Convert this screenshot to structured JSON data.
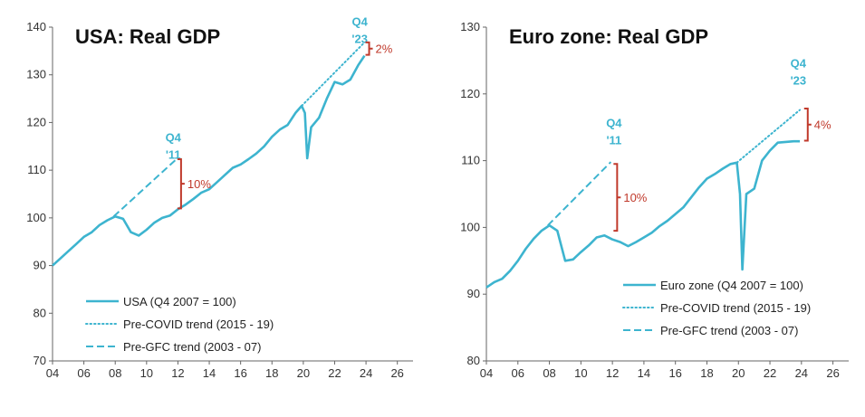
{
  "chart_data": [
    {
      "type": "line",
      "title": "USA: Real GDP",
      "xlabel": "",
      "ylabel": "",
      "xlim": [
        2004,
        2027
      ],
      "ylim": [
        70,
        140
      ],
      "x_ticks": [
        4,
        6,
        8,
        10,
        12,
        14,
        16,
        18,
        20,
        22,
        24,
        26
      ],
      "x_tick_labels": [
        "04",
        "06",
        "08",
        "10",
        "12",
        "14",
        "16",
        "18",
        "20",
        "22",
        "24",
        "26"
      ],
      "y_ticks": [
        70,
        80,
        90,
        100,
        110,
        120,
        130,
        140
      ],
      "y_tick_labels": [
        "70",
        "80",
        "90",
        "100",
        "110",
        "120",
        "130",
        "140"
      ],
      "legend_position": "bottom-left",
      "series": [
        {
          "name": "USA (Q4 2007 = 100)",
          "style": "solid",
          "color": "#3db4cf",
          "points": [
            [
              2004.0,
              90.0
            ],
            [
              2004.5,
              91.5
            ],
            [
              2005.0,
              93.0
            ],
            [
              2005.5,
              94.5
            ],
            [
              2006.0,
              96.0
            ],
            [
              2006.5,
              97.0
            ],
            [
              2007.0,
              98.5
            ],
            [
              2007.5,
              99.5
            ],
            [
              2008.0,
              100.3
            ],
            [
              2008.5,
              99.8
            ],
            [
              2009.0,
              97.0
            ],
            [
              2009.5,
              96.3
            ],
            [
              2010.0,
              97.5
            ],
            [
              2010.5,
              99.0
            ],
            [
              2011.0,
              100.0
            ],
            [
              2011.5,
              100.5
            ],
            [
              2012.0,
              101.8
            ],
            [
              2012.5,
              102.8
            ],
            [
              2013.0,
              104.0
            ],
            [
              2013.5,
              105.3
            ],
            [
              2014.0,
              106.0
            ],
            [
              2014.5,
              107.5
            ],
            [
              2015.0,
              109.0
            ],
            [
              2015.5,
              110.5
            ],
            [
              2016.0,
              111.2
            ],
            [
              2016.5,
              112.3
            ],
            [
              2017.0,
              113.5
            ],
            [
              2017.5,
              115.0
            ],
            [
              2018.0,
              117.0
            ],
            [
              2018.5,
              118.5
            ],
            [
              2019.0,
              119.5
            ],
            [
              2019.5,
              122.0
            ],
            [
              2019.9,
              123.5
            ],
            [
              2020.1,
              122.0
            ],
            [
              2020.25,
              112.5
            ],
            [
              2020.5,
              119.0
            ],
            [
              2021.0,
              121.0
            ],
            [
              2021.5,
              125.0
            ],
            [
              2022.0,
              128.5
            ],
            [
              2022.5,
              128.0
            ],
            [
              2023.0,
              129.0
            ],
            [
              2023.5,
              132.0
            ],
            [
              2023.9,
              134.0
            ]
          ]
        },
        {
          "name": "Pre-COVID trend (2015 - 19)",
          "style": "dotted",
          "color": "#3db4cf",
          "points": [
            [
              2019.9,
              123.5
            ],
            [
              2023.9,
              136.8
            ]
          ]
        },
        {
          "name": "Pre-GFC trend (2003 - 07)",
          "style": "dashed",
          "color": "#3db4cf",
          "points": [
            [
              2007.9,
              100.3
            ],
            [
              2011.9,
              112.3
            ]
          ]
        }
      ],
      "annotations": [
        {
          "kind": "label",
          "lines": [
            "Q4",
            "'11"
          ],
          "x": 2011.7,
          "y": 116.0
        },
        {
          "kind": "bracket",
          "text": "10%",
          "x": 2012.2,
          "y_low": 102.0,
          "y_high": 112.3
        },
        {
          "kind": "label",
          "lines": [
            "Q4",
            "'23"
          ],
          "x": 2023.6,
          "y": 140.3
        },
        {
          "kind": "bracket",
          "text": "2%",
          "x": 2024.2,
          "y_low": 134.2,
          "y_high": 136.8
        }
      ]
    },
    {
      "type": "line",
      "title": "Euro zone: Real GDP",
      "xlabel": "",
      "ylabel": "",
      "xlim": [
        2004,
        2027
      ],
      "ylim": [
        80,
        130
      ],
      "x_ticks": [
        4,
        6,
        8,
        10,
        12,
        14,
        16,
        18,
        20,
        22,
        24,
        26
      ],
      "x_tick_labels": [
        "04",
        "06",
        "08",
        "10",
        "12",
        "14",
        "16",
        "18",
        "20",
        "22",
        "24",
        "26"
      ],
      "y_ticks": [
        80,
        90,
        100,
        110,
        120,
        130
      ],
      "y_tick_labels": [
        "80",
        "90",
        "100",
        "110",
        "120",
        "130"
      ],
      "legend_position": "bottom-right",
      "series": [
        {
          "name": "Euro zone (Q4 2007 = 100)",
          "style": "solid",
          "color": "#3db4cf",
          "points": [
            [
              2004.0,
              91.0
            ],
            [
              2004.5,
              91.8
            ],
            [
              2005.0,
              92.3
            ],
            [
              2005.5,
              93.5
            ],
            [
              2006.0,
              95.0
            ],
            [
              2006.5,
              96.8
            ],
            [
              2007.0,
              98.3
            ],
            [
              2007.5,
              99.5
            ],
            [
              2008.0,
              100.3
            ],
            [
              2008.5,
              99.5
            ],
            [
              2009.0,
              95.0
            ],
            [
              2009.5,
              95.2
            ],
            [
              2010.0,
              96.3
            ],
            [
              2010.5,
              97.3
            ],
            [
              2011.0,
              98.5
            ],
            [
              2011.5,
              98.8
            ],
            [
              2012.0,
              98.2
            ],
            [
              2012.5,
              97.8
            ],
            [
              2013.0,
              97.2
            ],
            [
              2013.5,
              97.8
            ],
            [
              2014.0,
              98.5
            ],
            [
              2014.5,
              99.2
            ],
            [
              2015.0,
              100.2
            ],
            [
              2015.5,
              101.0
            ],
            [
              2016.0,
              102.0
            ],
            [
              2016.5,
              103.0
            ],
            [
              2017.0,
              104.5
            ],
            [
              2017.5,
              106.0
            ],
            [
              2018.0,
              107.3
            ],
            [
              2018.5,
              108.0
            ],
            [
              2019.0,
              108.8
            ],
            [
              2019.5,
              109.5
            ],
            [
              2019.9,
              109.7
            ],
            [
              2020.1,
              105.0
            ],
            [
              2020.25,
              93.7
            ],
            [
              2020.5,
              105.0
            ],
            [
              2021.0,
              105.8
            ],
            [
              2021.5,
              110.0
            ],
            [
              2022.0,
              111.5
            ],
            [
              2022.5,
              112.7
            ],
            [
              2023.0,
              112.8
            ],
            [
              2023.5,
              112.9
            ],
            [
              2023.9,
              112.9
            ]
          ]
        },
        {
          "name": "Pre-COVID trend (2015 - 19)",
          "style": "dotted",
          "color": "#3db4cf",
          "points": [
            [
              2019.9,
              109.7
            ],
            [
              2023.9,
              117.6
            ]
          ]
        },
        {
          "name": "Pre-GFC trend (2003 - 07)",
          "style": "dashed",
          "color": "#3db4cf",
          "points": [
            [
              2007.9,
              100.3
            ],
            [
              2011.9,
              109.8
            ]
          ]
        }
      ],
      "annotations": [
        {
          "kind": "label",
          "lines": [
            "Q4",
            "'11"
          ],
          "x": 2012.1,
          "y": 115.0
        },
        {
          "kind": "bracket",
          "text": "10%",
          "x": 2012.3,
          "y_low": 99.5,
          "y_high": 109.5
        },
        {
          "kind": "label",
          "lines": [
            "Q4",
            "'23"
          ],
          "x": 2023.8,
          "y": 124.0
        },
        {
          "kind": "bracket",
          "text": "4%",
          "x": 2024.4,
          "y_low": 113.0,
          "y_high": 117.8
        }
      ]
    }
  ],
  "colors": {
    "line": "#3db4cf",
    "annotation_label": "#3db4cf",
    "bracket": "#c0392b",
    "axis": "#666666"
  }
}
